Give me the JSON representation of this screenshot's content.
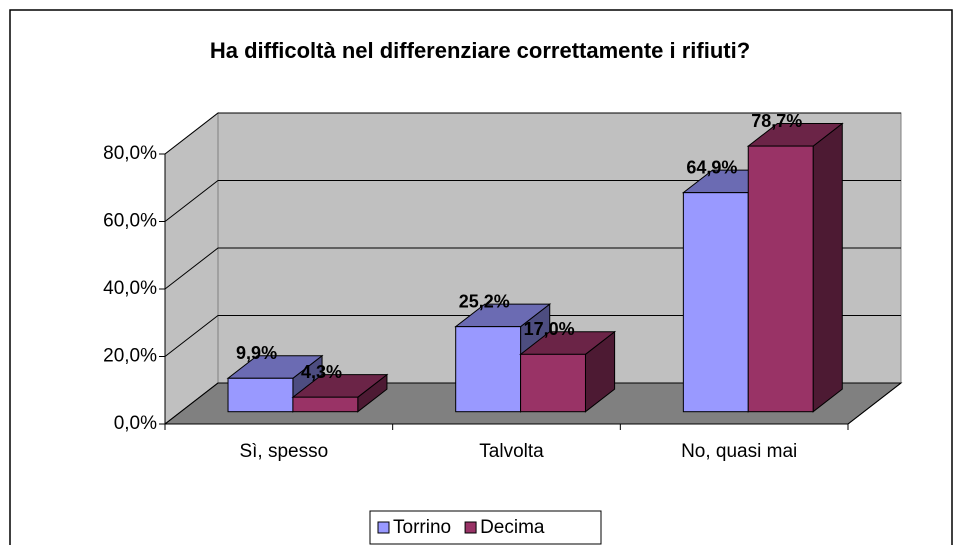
{
  "chart_data": {
    "type": "bar",
    "title": "Ha difficoltà nel differenziare correttamente i rifiuti?",
    "categories": [
      "Sì, spesso",
      "Talvolta",
      "No, quasi mai"
    ],
    "series": [
      {
        "name": "Torrino",
        "color": "#9999ff",
        "values": [
          9.9,
          25.2,
          64.9
        ],
        "value_labels": [
          "9,9%",
          "25,2%",
          "64,9%"
        ]
      },
      {
        "name": "Decima",
        "color": "#993366",
        "values": [
          4.3,
          17.0,
          78.7
        ],
        "value_labels": [
          "4,3%",
          "17,0%",
          "78,7%"
        ]
      }
    ],
    "ylim": [
      0,
      80
    ],
    "yticks": [
      {
        "value": 0,
        "label": "0,0%"
      },
      {
        "value": 20,
        "label": "20,0%"
      },
      {
        "value": 40,
        "label": "40,0%"
      },
      {
        "value": 60,
        "label": "60,0%"
      },
      {
        "value": 80,
        "label": "80,0%"
      }
    ],
    "grid": true,
    "legend": "bottom"
  }
}
